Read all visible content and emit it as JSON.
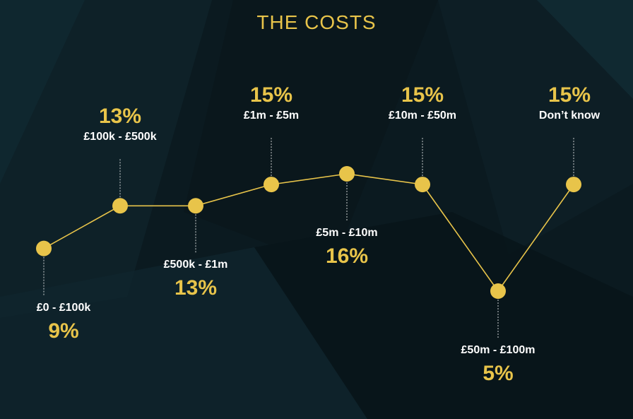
{
  "title": "THE COSTS",
  "colors": {
    "accent": "#e8c44a",
    "text": "#ffffff",
    "background": "#0b1a20"
  },
  "chart_data": {
    "type": "line",
    "title": "THE COSTS",
    "categories": [
      "£0 - £100k",
      "£100k - £500k",
      "£500k - £1m",
      "£1m - £5m",
      "£5m - £10m",
      "£10m - £50m",
      "£50m - £100m",
      "Don’t know"
    ],
    "value_labels": [
      "9%",
      "13%",
      "13%",
      "15%",
      "16%",
      "15%",
      "5%",
      "15%"
    ],
    "values": [
      9,
      13,
      13,
      15,
      16,
      15,
      5,
      15
    ],
    "label_side": [
      "below",
      "above",
      "below",
      "above",
      "below",
      "above",
      "below",
      "above"
    ],
    "ylim": [
      5,
      16
    ],
    "grid": false,
    "axes": false,
    "legend": false
  }
}
